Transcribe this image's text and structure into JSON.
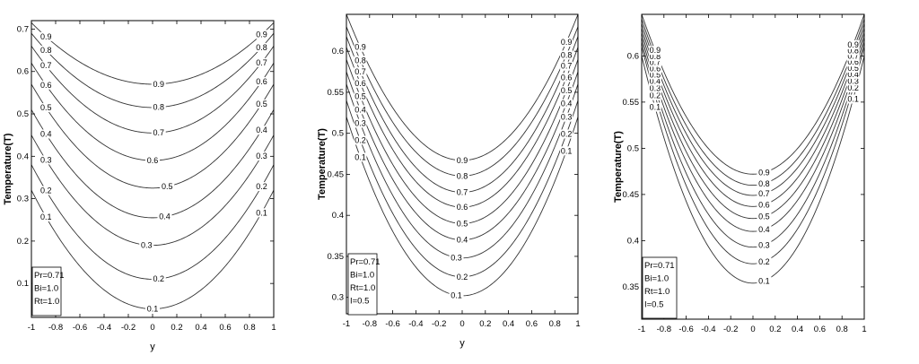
{
  "chart_data": [
    {
      "type": "line",
      "title": "",
      "xlabel": "y",
      "ylabel": "Temperature(T)",
      "xlim": [
        -1,
        1
      ],
      "ylim": [
        0.02,
        0.72
      ],
      "xticks": [
        "-1",
        "-0.8",
        "-0.6",
        "-0.4",
        "-0.2",
        "0",
        "0.2",
        "0.4",
        "0.6",
        "0.8",
        "1"
      ],
      "yticks": [
        {
          "value": 0.1,
          "label": "0.1"
        },
        {
          "value": 0.2,
          "label": "0.2"
        },
        {
          "value": 0.3,
          "label": "0.3"
        },
        {
          "value": 0.4,
          "label": "0.4"
        },
        {
          "value": 0.5,
          "label": "0.5"
        },
        {
          "value": 0.6,
          "label": "0.6"
        },
        {
          "value": 0.7,
          "label": "0.7"
        }
      ],
      "grid": false,
      "series": [
        {
          "label": "0.1",
          "bottom": 0.04,
          "edge": 0.32
        },
        {
          "label": "0.2",
          "bottom": 0.11,
          "edge": 0.38
        },
        {
          "label": "0.3",
          "bottom": 0.19,
          "edge": 0.45
        },
        {
          "label": "0.4",
          "bottom": 0.255,
          "edge": 0.51
        },
        {
          "label": "0.5",
          "bottom": 0.325,
          "edge": 0.57
        },
        {
          "label": "0.6",
          "bottom": 0.39,
          "edge": 0.62
        },
        {
          "label": "0.7",
          "bottom": 0.455,
          "edge": 0.66
        },
        {
          "label": "0.8",
          "bottom": 0.515,
          "edge": 0.69
        },
        {
          "label": "0.9",
          "bottom": 0.57,
          "edge": 0.715
        }
      ],
      "legend_position": "bottom-left",
      "legend": [
        "Pr=0.71",
        "Bi=1.0",
        "Rt=1.0"
      ]
    },
    {
      "type": "line",
      "title": "",
      "xlabel": "y",
      "ylabel": "Temperature(T)",
      "xlim": [
        -1,
        1
      ],
      "ylim": [
        0.28,
        0.645
      ],
      "xticks": [
        "-1",
        "-0.8",
        "-0.6",
        "-0.4",
        "-0.2",
        "0",
        "0.2",
        "0.4",
        "0.6",
        "0.8",
        "1"
      ],
      "yticks": [
        {
          "value": 0.3,
          "label": "0.3"
        },
        {
          "value": 0.35,
          "label": "0.35"
        },
        {
          "value": 0.4,
          "label": "0.4"
        },
        {
          "value": 0.45,
          "label": "0.45"
        },
        {
          "value": 0.5,
          "label": "0.5"
        },
        {
          "value": 0.55,
          "label": "0.55"
        },
        {
          "value": 0.6,
          "label": "0.6"
        }
      ],
      "grid": false,
      "series": [
        {
          "label": "0.1",
          "bottom": 0.302,
          "edge": 0.52
        },
        {
          "label": "0.2",
          "bottom": 0.325,
          "edge": 0.54
        },
        {
          "label": "0.3",
          "bottom": 0.348,
          "edge": 0.56
        },
        {
          "label": "0.4",
          "bottom": 0.37,
          "edge": 0.575
        },
        {
          "label": "0.5",
          "bottom": 0.39,
          "edge": 0.59
        },
        {
          "label": "0.6",
          "bottom": 0.41,
          "edge": 0.605
        },
        {
          "label": "0.7",
          "bottom": 0.428,
          "edge": 0.618
        },
        {
          "label": "0.8",
          "bottom": 0.448,
          "edge": 0.63
        },
        {
          "label": "0.9",
          "bottom": 0.467,
          "edge": 0.645
        }
      ],
      "legend_position": "bottom-left",
      "legend": [
        "Pr=0.71",
        "Bi=1.0",
        "Rt=1.0",
        "I=0.5"
      ]
    },
    {
      "type": "line",
      "title": "",
      "xlabel": "",
      "ylabel": "Temperature(T)",
      "xlim": [
        -1,
        1
      ],
      "ylim": [
        0.315,
        0.645
      ],
      "xticks": [
        "-1",
        "-0.8",
        "-0.6",
        "-0.4",
        "-0.2",
        "0",
        "0.2",
        "0.4",
        "0.6",
        "0.8",
        "1"
      ],
      "yticks": [
        {
          "value": 0.35,
          "label": "0.35"
        },
        {
          "value": 0.4,
          "label": "0.4"
        },
        {
          "value": 0.45,
          "label": "0.45"
        },
        {
          "value": 0.5,
          "label": "0.5"
        },
        {
          "value": 0.55,
          "label": "0.55"
        },
        {
          "value": 0.6,
          "label": "0.6"
        }
      ],
      "grid": false,
      "series": [
        {
          "label": "0.1",
          "bottom": 0.354,
          "edge": 0.6
        },
        {
          "label": "0.2",
          "bottom": 0.375,
          "edge": 0.61
        },
        {
          "label": "0.3",
          "bottom": 0.393,
          "edge": 0.615
        },
        {
          "label": "0.4",
          "bottom": 0.41,
          "edge": 0.62
        },
        {
          "label": "0.5",
          "bottom": 0.424,
          "edge": 0.625
        },
        {
          "label": "0.6",
          "bottom": 0.437,
          "edge": 0.63
        },
        {
          "label": "0.7",
          "bottom": 0.449,
          "edge": 0.635
        },
        {
          "label": "0.8",
          "bottom": 0.46,
          "edge": 0.64
        },
        {
          "label": "0.9",
          "bottom": 0.472,
          "edge": 0.645
        }
      ],
      "legend_position": "bottom-left",
      "legend": [
        "Pr=0.71",
        "Bi=1.0",
        "Rt=1.0",
        "I=0.5"
      ]
    }
  ]
}
